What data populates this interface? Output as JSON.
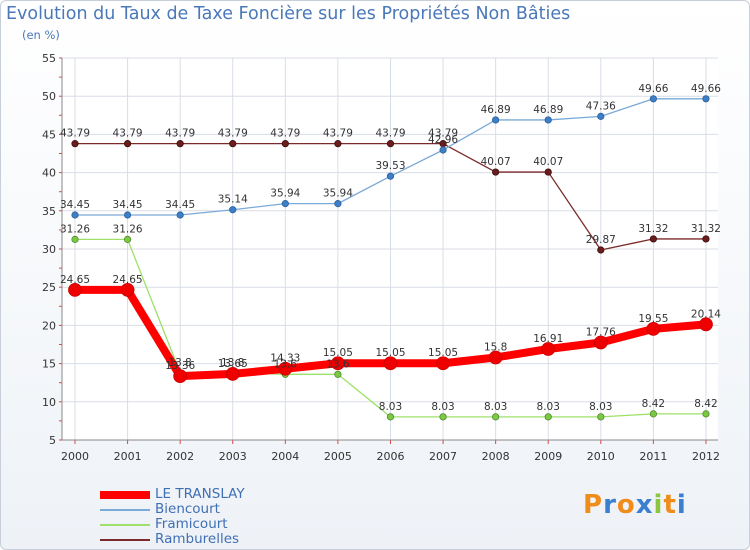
{
  "chart_data": {
    "type": "line",
    "title": "Evolution du Taux de Taxe Foncière sur les Propriétés Non Bâties",
    "ylabel": "(en %)",
    "xlabel": "",
    "ylim": [
      5,
      55
    ],
    "yticks": [
      5,
      10,
      15,
      20,
      25,
      30,
      35,
      40,
      45,
      50,
      55
    ],
    "grid": true,
    "legend_position": "bottom-left",
    "categories": [
      "2000",
      "2001",
      "2002",
      "2003",
      "2004",
      "2005",
      "2006",
      "2007",
      "2008",
      "2009",
      "2010",
      "2011",
      "2012"
    ],
    "series": [
      {
        "name": "LE TRANSLAY",
        "color": "#ff0000",
        "values": [
          24.65,
          24.65,
          13.36,
          13.65,
          14.33,
          15.05,
          15.05,
          15.05,
          15.8,
          16.91,
          17.76,
          19.55,
          20.14
        ],
        "labels": [
          "24.65",
          "24.65",
          "13.36",
          "13.65",
          "14.33",
          "15.05",
          "15.05",
          "15.05",
          "15.8",
          "16.91",
          "17.76",
          "19.55",
          "20.14"
        ]
      },
      {
        "name": "Biencourt",
        "color": "#7aaad8",
        "values": [
          34.45,
          34.45,
          34.45,
          35.14,
          35.94,
          35.94,
          39.53,
          42.96,
          46.89,
          46.89,
          47.36,
          49.66,
          49.66
        ],
        "labels": [
          "34.45",
          "34.45",
          "34.45",
          "35.14",
          "35.94",
          "35.94",
          "39.53",
          "42.96",
          "46.89",
          "46.89",
          "47.36",
          "49.66",
          "49.66"
        ]
      },
      {
        "name": "Framicourt",
        "color": "#9ee06a",
        "values": [
          31.26,
          31.26,
          13.8,
          13.8,
          13.6,
          13.6,
          8.03,
          8.03,
          8.03,
          8.03,
          8.03,
          8.42,
          8.42
        ],
        "labels": [
          "31.26",
          "31.26",
          "13.8",
          "13.8",
          "13.6",
          "13.6",
          "8.03",
          "8.03",
          "8.03",
          "8.03",
          "8.03",
          "8.42",
          "8.42"
        ]
      },
      {
        "name": "Ramburelles",
        "color": "#7a2a2a",
        "values": [
          43.79,
          43.79,
          43.79,
          43.79,
          43.79,
          43.79,
          43.79,
          43.79,
          40.07,
          40.07,
          29.87,
          31.32,
          31.32
        ],
        "labels": [
          "43.79",
          "43.79",
          "43.79",
          "43.79",
          "43.79",
          "43.79",
          "43.79",
          "43.79",
          "40.07",
          "40.07",
          "29.87",
          "31.32",
          "31.32"
        ]
      }
    ]
  },
  "logo": {
    "letters": [
      "P",
      "r",
      "o",
      "x",
      "i",
      "t",
      "i"
    ],
    "colors": [
      "#f08c1a",
      "#3a7fd0",
      "#f08c1a",
      "#3a7fd0",
      "#8cc63f",
      "#f08c1a",
      "#3a7fd0"
    ]
  }
}
